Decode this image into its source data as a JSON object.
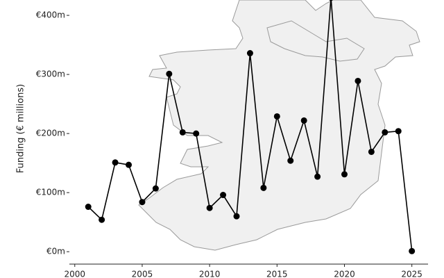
{
  "chart_data": {
    "type": "line",
    "y_label": "Funding (€ millions)",
    "x": [
      2001,
      2002,
      2003,
      2004,
      2005,
      2006,
      2007,
      2008,
      2009,
      2010,
      2011,
      2012,
      2013,
      2014,
      2015,
      2016,
      2017,
      2018,
      2019,
      2020,
      2021,
      2022,
      2023,
      2024,
      2025
    ],
    "values": [
      76,
      54,
      151,
      147,
      84,
      107,
      301,
      202,
      200,
      74,
      96,
      60,
      336,
      108,
      229,
      154,
      222,
      127,
      430,
      131,
      289,
      169,
      202,
      204,
      1
    ],
    "color": "#000000",
    "xlim": [
      1999.6,
      2026.2
    ],
    "xticks": [
      2000,
      2005,
      2010,
      2015,
      2020,
      2025
    ],
    "ylim": [
      -21,
      426
    ],
    "yticks": [
      {
        "value": 0,
        "label": "€0m"
      },
      {
        "value": 100,
        "label": "€100m"
      },
      {
        "value": 200,
        "label": "€200m"
      },
      {
        "value": 300,
        "label": "€300m"
      },
      {
        "value": 400,
        "label": "€400m"
      }
    ]
  }
}
